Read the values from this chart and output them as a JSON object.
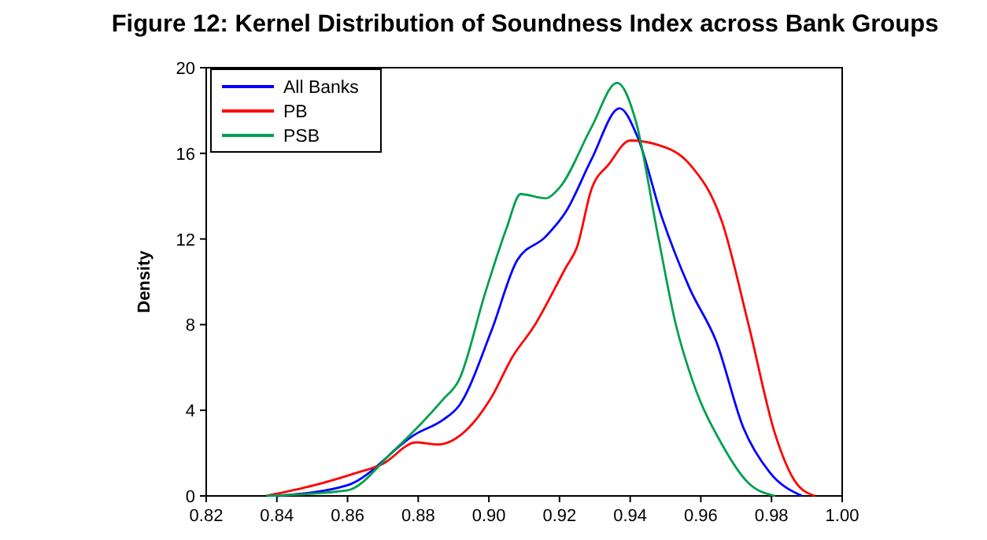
{
  "chart_data": {
    "type": "line",
    "title": "Figure 12: Kernel Distribution of Soundness Index across Bank Groups",
    "ylabel": "Density",
    "xlim": [
      0.82,
      1.0
    ],
    "xticks": [
      {
        "value": 0.82,
        "label": "0.82"
      },
      {
        "value": 0.84,
        "label": "0.84"
      },
      {
        "value": 0.86,
        "label": "0.86"
      },
      {
        "value": 0.88,
        "label": "0.88"
      },
      {
        "value": 0.9,
        "label": "0.90"
      },
      {
        "value": 0.92,
        "label": "0.92"
      },
      {
        "value": 0.94,
        "label": "0.94"
      },
      {
        "value": 0.96,
        "label": "0.96"
      },
      {
        "value": 0.98,
        "label": "0.98"
      },
      {
        "value": 1.0,
        "label": "1.00"
      }
    ],
    "ylim": [
      0,
      20
    ],
    "yticks": [
      0,
      4,
      8,
      12,
      16,
      20
    ],
    "grid": false,
    "legend": "top left",
    "marker": "none",
    "line_style": "solid",
    "series": [
      {
        "name": "All Banks",
        "color": "#0000ff",
        "x": [
          0.84,
          0.86,
          0.8794,
          0.887,
          0.8915,
          0.9007,
          0.908,
          0.916,
          0.9219,
          0.929,
          0.937,
          0.942,
          0.949,
          0.9568,
          0.9644,
          0.972,
          0.9795,
          0.9886
        ],
        "values": [
          0,
          0.5,
          2.9,
          3.55,
          4.2,
          7.7,
          11.0,
          12.1,
          13.3,
          15.7,
          18.1,
          16.8,
          13.0,
          9.7,
          7.2,
          3.2,
          1.1,
          0
        ]
      },
      {
        "name": "PB",
        "color": "#ff0000",
        "x": [
          0.837,
          0.8506,
          0.861,
          0.87,
          0.8794,
          0.8855,
          0.8944,
          0.9007,
          0.9067,
          0.9127,
          0.9219,
          0.9249,
          0.929,
          0.934,
          0.94,
          0.9477,
          0.9568,
          0.966,
          0.9735,
          0.981,
          0.987,
          0.9923
        ],
        "values": [
          0,
          0.5,
          1.0,
          1.5,
          2.5,
          2.4,
          3.2,
          4.6,
          6.5,
          7.9,
          10.7,
          11.6,
          14.3,
          15.5,
          16.6,
          16.4,
          15.5,
          12.8,
          8.0,
          2.9,
          0.6,
          0
        ]
      },
      {
        "name": "PSB",
        "color": "#00a050",
        "x": [
          0.837,
          0.8597,
          0.873,
          0.887,
          0.8915,
          0.899,
          0.905,
          0.909,
          0.916,
          0.92,
          0.929,
          0.9363,
          0.9416,
          0.9477,
          0.953,
          0.9576,
          0.966,
          0.9735,
          0.981
        ],
        "values": [
          0,
          0.25,
          2.1,
          4.5,
          5.4,
          9.5,
          12.5,
          14.1,
          13.9,
          14.4,
          17.2,
          19.3,
          17.5,
          12.3,
          7.95,
          5.4,
          2.4,
          0.6,
          0
        ]
      }
    ]
  }
}
